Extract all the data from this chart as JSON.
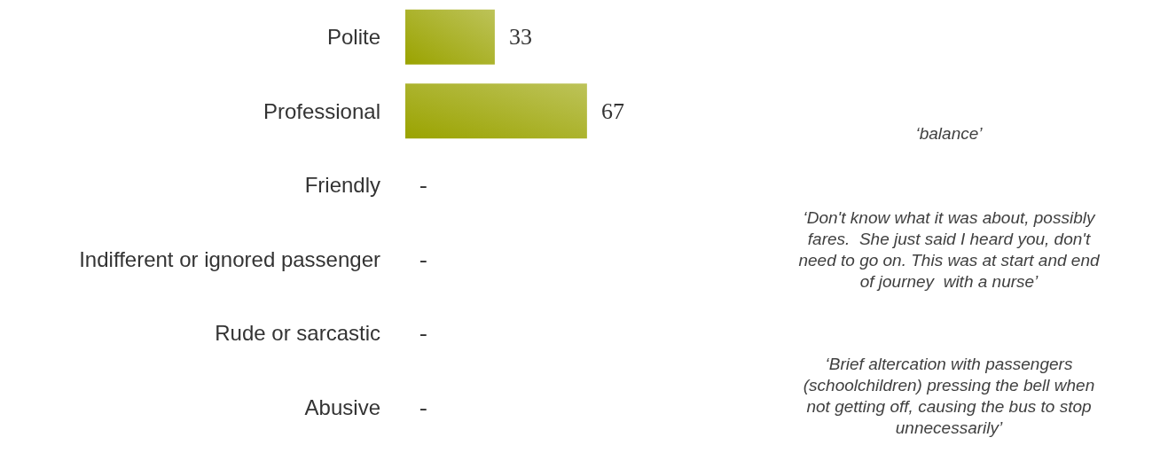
{
  "chart_data": {
    "type": "bar",
    "orientation": "horizontal",
    "categories": [
      "Polite",
      "Professional",
      "Friendly",
      "Indifferent or ignored passenger",
      "Rude or sarcastic",
      "Abusive"
    ],
    "values": [
      33,
      67,
      0,
      0,
      0,
      0
    ],
    "value_labels": [
      "33",
      "67",
      "-",
      "-",
      "-",
      "-"
    ],
    "color": "#9aa300",
    "annotations": [
      "‘balance’",
      "‘Don't know what it was about, possibly fares.  She just said I heard you, don't need to go on. This was at start and end of journey  with a nurse’",
      "‘Brief altercation with passengers (schoolchildren) pressing the bell when not getting off, causing the bus to stop unnecessarily’"
    ]
  }
}
